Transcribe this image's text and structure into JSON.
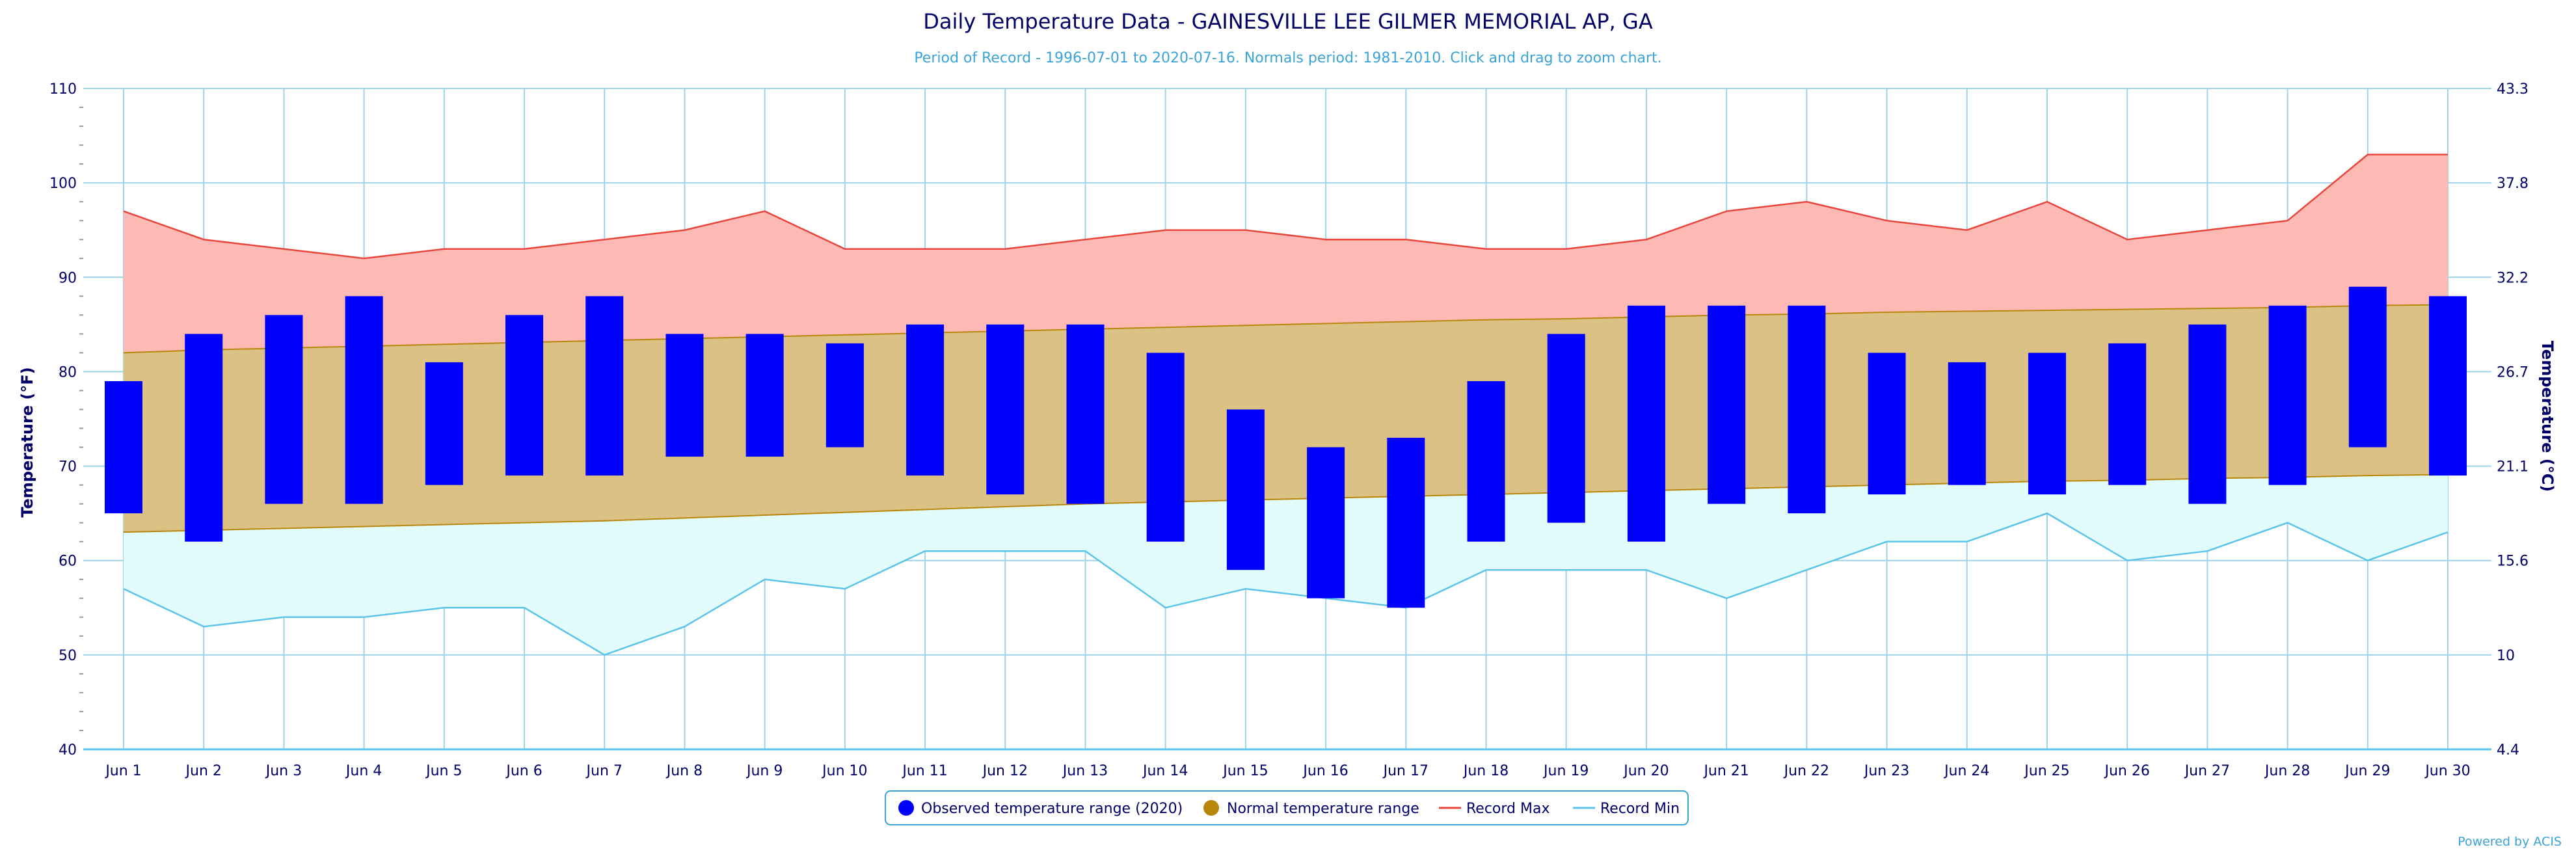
{
  "chart_data": {
    "type": "bar",
    "title": "Daily Temperature Data - GAINESVILLE LEE GILMER MEMORIAL AP, GA",
    "subtitle": "Period of Record - 1996-07-01 to 2020-07-16. Normals period: 1981-2010. Click and drag to zoom chart.",
    "ylabel": "Temperature (°F)",
    "ylabel_right": "Temperature (°C)",
    "ylim": [
      40,
      110
    ],
    "yticks": [
      40,
      50,
      60,
      70,
      80,
      90,
      100,
      110
    ],
    "yticks_right": [
      "4.4",
      "10",
      "15.6",
      "21.1",
      "26.7",
      "32.2",
      "37.8",
      "43.3"
    ],
    "grid": true,
    "legend_position": "bottom-center",
    "categories": [
      "Jun 1",
      "Jun 2",
      "Jun 3",
      "Jun 4",
      "Jun 5",
      "Jun 6",
      "Jun 7",
      "Jun 8",
      "Jun 9",
      "Jun 10",
      "Jun 11",
      "Jun 12",
      "Jun 13",
      "Jun 14",
      "Jun 15",
      "Jun 16",
      "Jun 17",
      "Jun 18",
      "Jun 19",
      "Jun 20",
      "Jun 21",
      "Jun 22",
      "Jun 23",
      "Jun 24",
      "Jun 25",
      "Jun 26",
      "Jun 27",
      "Jun 28",
      "Jun 29",
      "Jun 30"
    ],
    "series": [
      {
        "name": "Observed temperature range (2020)",
        "kind": "range-bar",
        "color": "#0000ff",
        "low": [
          65,
          62,
          66,
          66,
          68,
          69,
          69,
          71,
          71,
          72,
          69,
          67,
          66,
          62,
          59,
          56,
          55,
          62,
          64,
          62,
          66,
          65,
          67,
          68,
          67,
          68,
          66,
          68,
          72,
          69
        ],
        "high": [
          79,
          84,
          86,
          88,
          81,
          86,
          88,
          84,
          84,
          83,
          85,
          85,
          85,
          82,
          76,
          72,
          73,
          79,
          84,
          87,
          87,
          87,
          82,
          81,
          82,
          83,
          85,
          87,
          89,
          88
        ]
      },
      {
        "name": "Normal temperature range",
        "kind": "range-area",
        "color": "#b8860b",
        "low": [
          63,
          63.2,
          63.4,
          63.6,
          63.8,
          64,
          64.2,
          64.5,
          64.8,
          65.1,
          65.4,
          65.7,
          66,
          66.2,
          66.4,
          66.6,
          66.8,
          67,
          67.2,
          67.4,
          67.6,
          67.8,
          68,
          68.2,
          68.4,
          68.5,
          68.7,
          68.8,
          69,
          69.1
        ],
        "high": [
          82,
          82.3,
          82.5,
          82.7,
          82.9,
          83.1,
          83.3,
          83.5,
          83.7,
          83.9,
          84.1,
          84.3,
          84.5,
          84.7,
          84.9,
          85.1,
          85.3,
          85.5,
          85.6,
          85.8,
          86,
          86.1,
          86.3,
          86.4,
          86.5,
          86.6,
          86.7,
          86.8,
          87,
          87.1
        ]
      },
      {
        "name": "Record Max",
        "kind": "line-fill",
        "color": "#e8453c",
        "values": [
          97,
          94,
          93,
          92,
          93,
          93,
          94,
          95,
          97,
          93,
          93,
          93,
          94,
          95,
          95,
          94,
          94,
          93,
          93,
          94,
          97,
          98,
          96,
          95,
          98,
          94,
          95,
          96,
          103,
          103
        ]
      },
      {
        "name": "Record Min",
        "kind": "line-fill",
        "color": "#5bc4e8",
        "values": [
          57,
          53,
          54,
          54,
          55,
          55,
          50,
          53,
          58,
          57,
          61,
          61,
          61,
          55,
          57,
          56,
          55,
          59,
          59,
          59,
          56,
          59,
          62,
          62,
          65,
          60,
          61,
          64,
          60,
          63
        ]
      }
    ],
    "credit": "Powered by ACIS"
  }
}
